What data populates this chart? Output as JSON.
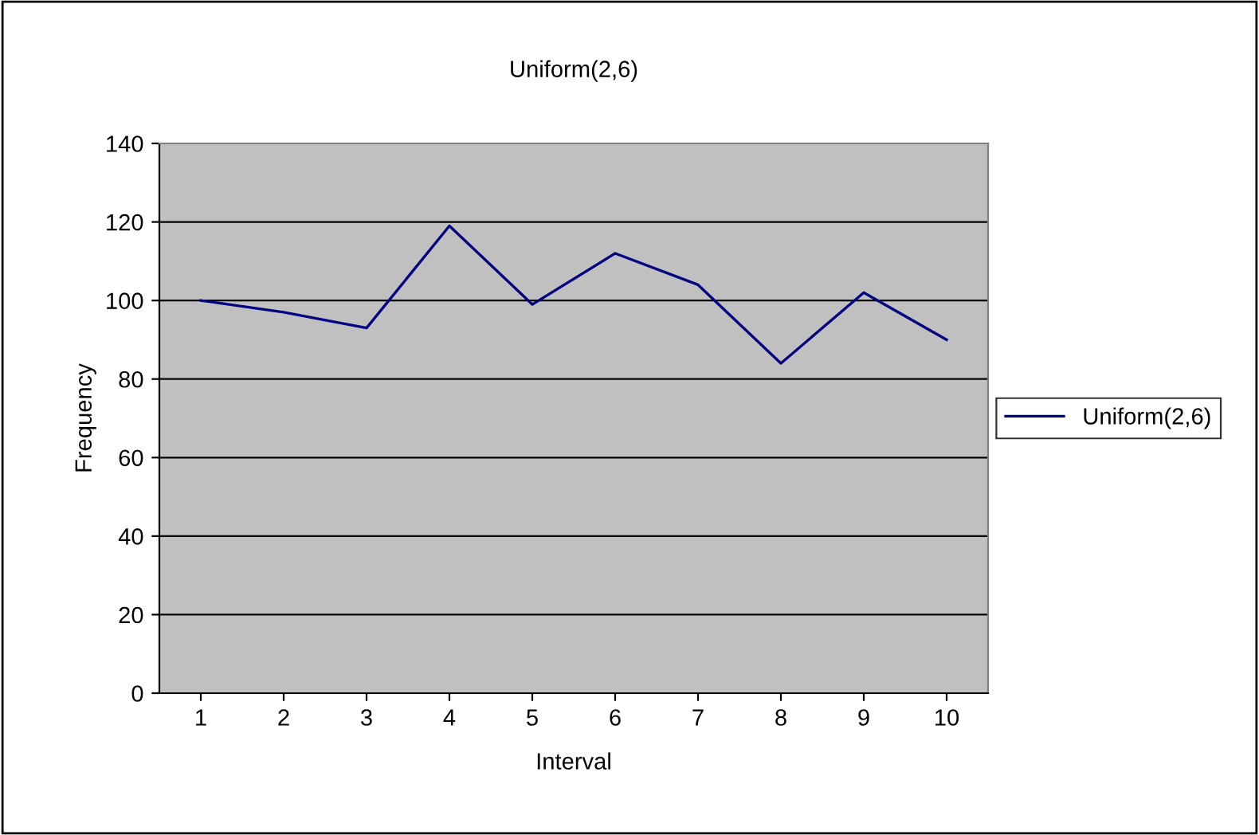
{
  "chart_data": {
    "type": "line",
    "title": "Uniform(2,6)",
    "xlabel": "Interval",
    "ylabel": "Frequency",
    "categories": [
      "1",
      "2",
      "3",
      "4",
      "5",
      "6",
      "7",
      "8",
      "9",
      "10"
    ],
    "series": [
      {
        "name": "Uniform(2,6)",
        "color": "#000080",
        "values": [
          100,
          97,
          93,
          119,
          99,
          112,
          104,
          84,
          102,
          90
        ]
      }
    ],
    "ylim": [
      0,
      140
    ],
    "yticks": [
      0,
      20,
      40,
      60,
      80,
      100,
      120,
      140
    ],
    "grid": "y",
    "legend": "right",
    "marker": "none",
    "line_style": "solid"
  }
}
